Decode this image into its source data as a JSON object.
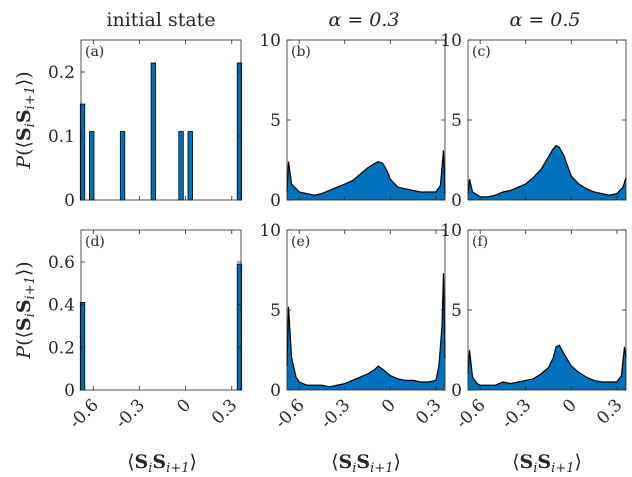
{
  "colors": {
    "fill": "#0072bd",
    "edge": "#000000",
    "axis": "#262626",
    "background": "#ffffff"
  },
  "chart_data": [
    {
      "panel": "(a)",
      "title": "initial state",
      "type": "bar",
      "row": 0,
      "col": 0,
      "ylabel": "P(⟨S_i S_{i+1}⟩)",
      "xlabel": "",
      "xlim": [
        -0.68,
        0.36
      ],
      "ylim": [
        0,
        0.25
      ],
      "yticks": [
        "0",
        "0.1",
        "0.2"
      ],
      "ytick_values": [
        0,
        0.1,
        0.2
      ],
      "x": [
        -0.67,
        -0.61,
        -0.41,
        -0.21,
        -0.03,
        0.03,
        0.35
      ],
      "values": [
        0.15,
        0.107,
        0.107,
        0.214,
        0.107,
        0.107,
        0.214
      ]
    },
    {
      "panel": "(b)",
      "title": "α = 0.3",
      "type": "area",
      "row": 0,
      "col": 1,
      "xlim": [
        -0.68,
        0.36
      ],
      "ylim": [
        0,
        10
      ],
      "yticks": [
        "0",
        "5",
        "10"
      ],
      "ytick_values": [
        0,
        5,
        10
      ],
      "x": [
        -0.68,
        -0.67,
        -0.65,
        -0.6,
        -0.55,
        -0.5,
        -0.45,
        -0.4,
        -0.35,
        -0.3,
        -0.25,
        -0.2,
        -0.15,
        -0.1,
        -0.08,
        -0.05,
        -0.02,
        0.0,
        0.05,
        0.1,
        0.15,
        0.2,
        0.25,
        0.3,
        0.33,
        0.35,
        0.36
      ],
      "values": [
        0.5,
        2.4,
        1.0,
        0.5,
        0.4,
        0.3,
        0.4,
        0.6,
        0.8,
        1.0,
        1.2,
        1.6,
        2.0,
        2.3,
        2.4,
        2.3,
        1.8,
        1.3,
        0.8,
        0.7,
        0.6,
        0.5,
        0.5,
        0.5,
        0.9,
        3.1,
        0.4
      ]
    },
    {
      "panel": "(c)",
      "title": "α = 0.5",
      "type": "area",
      "row": 0,
      "col": 2,
      "xlim": [
        -0.68,
        0.36
      ],
      "ylim": [
        0,
        10
      ],
      "yticks": [
        "0",
        "5",
        "10"
      ],
      "ytick_values": [
        0,
        5,
        10
      ],
      "x": [
        -0.68,
        -0.67,
        -0.65,
        -0.6,
        -0.55,
        -0.5,
        -0.45,
        -0.4,
        -0.35,
        -0.3,
        -0.25,
        -0.2,
        -0.15,
        -0.12,
        -0.1,
        -0.08,
        -0.05,
        -0.02,
        0.0,
        0.05,
        0.1,
        0.15,
        0.2,
        0.25,
        0.3,
        0.34,
        0.36
      ],
      "values": [
        0.4,
        1.3,
        0.5,
        0.2,
        0.2,
        0.3,
        0.5,
        0.6,
        0.8,
        1.0,
        1.4,
        1.9,
        2.7,
        3.2,
        3.4,
        3.3,
        2.8,
        2.0,
        1.5,
        1.0,
        0.7,
        0.5,
        0.4,
        0.3,
        0.4,
        0.8,
        1.4
      ]
    },
    {
      "panel": "(d)",
      "title": "",
      "type": "bar",
      "row": 1,
      "col": 0,
      "ylabel": "P(⟨S_i S_{i+1}⟩)",
      "xlabel": "⟨S_i S_{i+1}⟩",
      "xlim": [
        -0.68,
        0.36
      ],
      "ylim": [
        0,
        0.75
      ],
      "yticks": [
        "0",
        "0.2",
        "0.4",
        "0.6"
      ],
      "ytick_values": [
        0,
        0.2,
        0.4,
        0.6
      ],
      "x": [
        -0.67,
        0.35
      ],
      "values": [
        0.41,
        0.59
      ]
    },
    {
      "panel": "(e)",
      "title": "",
      "type": "area",
      "row": 1,
      "col": 1,
      "xlabel": "⟨S_i S_{i+1}⟩",
      "xlim": [
        -0.68,
        0.36
      ],
      "ylim": [
        0,
        10
      ],
      "yticks": [
        "0",
        "5",
        "10"
      ],
      "ytick_values": [
        0,
        5,
        10
      ],
      "x": [
        -0.68,
        -0.67,
        -0.65,
        -0.62,
        -0.6,
        -0.55,
        -0.5,
        -0.45,
        -0.4,
        -0.35,
        -0.3,
        -0.25,
        -0.2,
        -0.15,
        -0.1,
        -0.08,
        -0.05,
        0.0,
        0.05,
        0.1,
        0.15,
        0.2,
        0.25,
        0.3,
        0.32,
        0.34,
        0.35,
        0.36
      ],
      "values": [
        1.5,
        5.2,
        2.0,
        0.8,
        0.5,
        0.3,
        0.3,
        0.3,
        0.2,
        0.3,
        0.4,
        0.6,
        0.8,
        1.0,
        1.3,
        1.5,
        1.3,
        0.9,
        0.7,
        0.6,
        0.6,
        0.5,
        0.5,
        0.6,
        1.5,
        4.0,
        7.3,
        2.0
      ]
    },
    {
      "panel": "(f)",
      "title": "",
      "type": "area",
      "row": 1,
      "col": 2,
      "xlabel": "⟨S_i S_{i+1}⟩",
      "xlim": [
        -0.68,
        0.36
      ],
      "ylim": [
        0,
        10
      ],
      "yticks": [
        "0",
        "5",
        "10"
      ],
      "ytick_values": [
        0,
        5,
        10
      ],
      "x": [
        -0.68,
        -0.67,
        -0.65,
        -0.62,
        -0.6,
        -0.55,
        -0.5,
        -0.45,
        -0.4,
        -0.35,
        -0.3,
        -0.25,
        -0.2,
        -0.15,
        -0.12,
        -0.1,
        -0.08,
        -0.05,
        0.0,
        0.05,
        0.1,
        0.15,
        0.2,
        0.25,
        0.3,
        0.33,
        0.35,
        0.36
      ],
      "values": [
        1.0,
        2.5,
        0.8,
        0.4,
        0.3,
        0.3,
        0.3,
        0.5,
        0.4,
        0.5,
        0.6,
        0.7,
        1.0,
        1.4,
        2.0,
        2.7,
        2.8,
        2.3,
        1.5,
        1.1,
        0.8,
        0.6,
        0.5,
        0.5,
        0.5,
        0.9,
        2.7,
        2.0
      ]
    }
  ],
  "shared": {
    "xticks": [
      "-0.6",
      "-0.3",
      "0",
      "0.3"
    ],
    "xtick_values": [
      -0.6,
      -0.3,
      0,
      0.3
    ]
  }
}
